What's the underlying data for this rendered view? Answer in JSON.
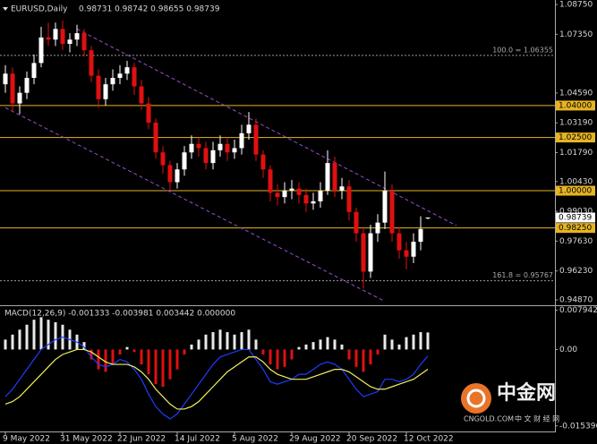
{
  "chart_data": [
    {
      "type": "candlestick",
      "title": "EURUSD,Daily",
      "header_values": "0.98731 0.98742 0.98655 0.98739",
      "categories": [
        "9 May 2022",
        null,
        null,
        null,
        null,
        null,
        null,
        null,
        "31 May 2022",
        null,
        null,
        null,
        null,
        null,
        null,
        null,
        "22 Jun 2022",
        null,
        null,
        null,
        null,
        null,
        null,
        null,
        "14 Jul 2022",
        null,
        null,
        null,
        null,
        null,
        null,
        null,
        "5 Aug 2022",
        null,
        null,
        null,
        null,
        null,
        null,
        null,
        "29 Aug 2022",
        null,
        null,
        null,
        null,
        null,
        null,
        null,
        "20 Sep 2022",
        null,
        null,
        null,
        null,
        null,
        null,
        null,
        "12 Oct 2022",
        null,
        null,
        null
      ],
      "open": [
        1.05,
        1.055,
        1.041,
        1.046,
        1.053,
        1.06,
        1.072,
        1.071,
        1.076,
        1.069,
        1.071,
        1.074,
        1.066,
        1.054,
        1.043,
        1.05,
        1.053,
        1.055,
        1.058,
        1.049,
        1.041,
        1.032,
        1.018,
        1.012,
        1.004,
        1.01,
        1.018,
        1.022,
        1.02,
        1.013,
        1.019,
        1.022,
        1.018,
        1.02,
        1.027,
        1.031,
        1.017,
        1.01,
        0.999,
        0.997,
        1.0,
        1.001,
        0.998,
        0.994,
        0.995,
        1.0,
        1.013,
        1.0,
        1.002,
        0.99,
        0.98,
        0.962,
        0.98,
        0.985,
        1.0,
        0.98,
        0.972,
        0.969,
        0.976,
        0.98731
      ],
      "high": [
        1.059,
        1.058,
        1.049,
        1.056,
        1.064,
        1.077,
        1.079,
        1.079,
        1.08,
        1.074,
        1.078,
        1.076,
        1.068,
        1.057,
        1.053,
        1.057,
        1.059,
        1.061,
        1.06,
        1.052,
        1.044,
        1.034,
        1.021,
        1.014,
        1.013,
        1.021,
        1.026,
        1.025,
        1.023,
        1.023,
        1.026,
        1.025,
        1.024,
        1.031,
        1.037,
        1.034,
        1.019,
        1.012,
        1.003,
        1.004,
        1.005,
        1.004,
        1.001,
        0.999,
        1.004,
        1.019,
        1.016,
        1.006,
        1.005,
        0.992,
        0.983,
        0.984,
        0.989,
        1.009,
        1.003,
        0.983,
        0.976,
        0.98,
        0.988,
        0.98742
      ],
      "low": [
        1.046,
        1.037,
        1.036,
        1.043,
        1.05,
        1.058,
        1.068,
        1.068,
        1.066,
        1.065,
        1.068,
        1.063,
        1.051,
        1.039,
        1.04,
        1.047,
        1.05,
        1.052,
        1.045,
        1.038,
        1.029,
        1.015,
        1.008,
        1.0,
        1.001,
        1.007,
        1.015,
        1.016,
        1.01,
        1.01,
        1.016,
        1.014,
        1.015,
        1.017,
        1.024,
        1.014,
        1.006,
        0.995,
        0.993,
        0.994,
        0.996,
        0.994,
        0.99,
        0.991,
        0.992,
        0.998,
        0.997,
        0.996,
        0.986,
        0.976,
        0.954,
        0.959,
        0.976,
        0.982,
        0.976,
        0.968,
        0.963,
        0.966,
        0.972,
        0.98655
      ],
      "close": [
        1.055,
        1.041,
        1.046,
        1.053,
        1.06,
        1.072,
        1.071,
        1.076,
        1.069,
        1.071,
        1.074,
        1.066,
        1.054,
        1.043,
        1.05,
        1.053,
        1.055,
        1.058,
        1.049,
        1.041,
        1.032,
        1.018,
        1.012,
        1.004,
        1.01,
        1.018,
        1.022,
        1.02,
        1.013,
        1.019,
        1.022,
        1.018,
        1.02,
        1.027,
        1.031,
        1.017,
        1.01,
        0.999,
        0.997,
        1.0,
        1.001,
        0.998,
        0.994,
        0.995,
        1.0,
        1.013,
        1.0,
        1.002,
        0.99,
        0.98,
        0.962,
        0.98,
        0.985,
        1.0,
        0.98,
        0.972,
        0.969,
        0.976,
        0.982,
        0.98739
      ],
      "colors": {
        "up": "#ffffff",
        "down": "#e01010",
        "level": "#e6b422",
        "channel": "#9a4fd0",
        "fib": "#9a9a9a"
      },
      "ylim": [
        0.9466,
        1.0896
      ],
      "yticks": [
        {
          "value": 1.0875,
          "label": "1.08750"
        },
        {
          "value": 1.0735,
          "label": "1.07350"
        },
        {
          "value": 1.0459,
          "label": "1.04590"
        },
        {
          "value": 1.0319,
          "label": "1.03190"
        },
        {
          "value": 1.0179,
          "label": "1.01790"
        },
        {
          "value": 1.0043,
          "label": "1.00430"
        },
        {
          "value": 0.9903,
          "label": "0.99030"
        },
        {
          "value": 0.9763,
          "label": "0.97630"
        },
        {
          "value": 0.9623,
          "label": "0.96230"
        },
        {
          "value": 0.9487,
          "label": "0.94870"
        }
      ],
      "levels": [
        {
          "value": 1.04,
          "label": "1.04000"
        },
        {
          "value": 1.025,
          "label": "1.02500"
        },
        {
          "value": 1.0,
          "label": "1.00000"
        },
        {
          "value": 0.9825,
          "label": "0.98250"
        }
      ],
      "last_price": {
        "value": 0.98739,
        "label": "0.98739"
      },
      "fib_levels": [
        {
          "value": 1.06355,
          "label": "100.0 = 1.06355"
        },
        {
          "value": 0.95767,
          "label": "161.8 = 0.95767"
        }
      ],
      "channels": [
        {
          "x": [
            10,
            63
          ],
          "y": [
            1.076,
            0.9836
          ]
        },
        {
          "x": [
            0,
            53
          ],
          "y": [
            1.039,
            0.948
          ]
        }
      ]
    },
    {
      "type": "macd",
      "title": "MACD(12,26,9) -0.001333 -0.003981 0.003442 0.000000",
      "histogram": [
        0.002,
        0.003,
        0.004,
        0.005,
        0.006,
        0.0065,
        0.006,
        0.0055,
        0.005,
        0.004,
        0.003,
        0.0015,
        -0.002,
        -0.004,
        -0.0045,
        -0.003,
        -0.001,
        0.0005,
        -0.0005,
        -0.003,
        -0.005,
        -0.007,
        -0.0075,
        -0.006,
        -0.004,
        -0.001,
        0.001,
        0.002,
        0.003,
        0.0035,
        0.004,
        0.0035,
        0.003,
        0.0035,
        0.004,
        0.002,
        -0.001,
        -0.003,
        -0.004,
        -0.0035,
        -0.002,
        0.0005,
        0.001,
        0.0015,
        0.002,
        0.0025,
        0.002,
        0.001,
        -0.002,
        -0.0035,
        -0.0045,
        -0.003,
        -0.001,
        0.003,
        0.002,
        0.001,
        0.0025,
        0.003,
        0.0035,
        0.003442
      ],
      "main": [
        -0.0095,
        -0.008,
        -0.006,
        -0.004,
        -0.002,
        0.0,
        0.001,
        0.002,
        0.0025,
        0.002,
        0.0015,
        0.0005,
        -0.0015,
        -0.003,
        -0.0035,
        -0.003,
        -0.002,
        -0.0025,
        -0.004,
        -0.006,
        -0.009,
        -0.0115,
        -0.013,
        -0.014,
        -0.013,
        -0.011,
        -0.009,
        -0.007,
        -0.005,
        -0.003,
        -0.0015,
        -0.001,
        -0.0005,
        0.0,
        0.0,
        -0.002,
        -0.004,
        -0.0065,
        -0.007,
        -0.0065,
        -0.006,
        -0.005,
        -0.005,
        -0.004,
        -0.003,
        -0.0025,
        -0.003,
        -0.004,
        -0.006,
        -0.008,
        -0.0095,
        -0.009,
        -0.0085,
        -0.006,
        -0.006,
        -0.0065,
        -0.006,
        -0.005,
        -0.003,
        -0.001333
      ],
      "signal": [
        -0.011,
        -0.0105,
        -0.0095,
        -0.008,
        -0.0065,
        -0.005,
        -0.0035,
        -0.002,
        -0.001,
        -0.0005,
        0.0,
        0.0,
        -0.0005,
        -0.0015,
        -0.0025,
        -0.003,
        -0.003,
        -0.003,
        -0.0035,
        -0.0045,
        -0.006,
        -0.008,
        -0.0095,
        -0.011,
        -0.012,
        -0.012,
        -0.0115,
        -0.0105,
        -0.009,
        -0.0075,
        -0.006,
        -0.0045,
        -0.0035,
        -0.0025,
        -0.0015,
        -0.0015,
        -0.0025,
        -0.004,
        -0.005,
        -0.0055,
        -0.006,
        -0.006,
        -0.006,
        -0.0055,
        -0.005,
        -0.0045,
        -0.004,
        -0.004,
        -0.0045,
        -0.0055,
        -0.0065,
        -0.0075,
        -0.008,
        -0.008,
        -0.0075,
        -0.007,
        -0.0065,
        -0.006,
        -0.005,
        -0.003981
      ],
      "colors": {
        "up": "#e8e8e8",
        "down": "#e01010",
        "main": "#1e3cff",
        "signal": "#f0f060"
      },
      "ylim": [
        -0.0158,
        0.0082
      ],
      "yticks": [
        0.007942,
        {
          "value": 0,
          "label": "0.00"
        },
        -0.015396
      ]
    }
  ],
  "watermark": {
    "brand": "中金网",
    "site": "CNGOLD.COM",
    "slogan": "中 文 财 经 网"
  }
}
